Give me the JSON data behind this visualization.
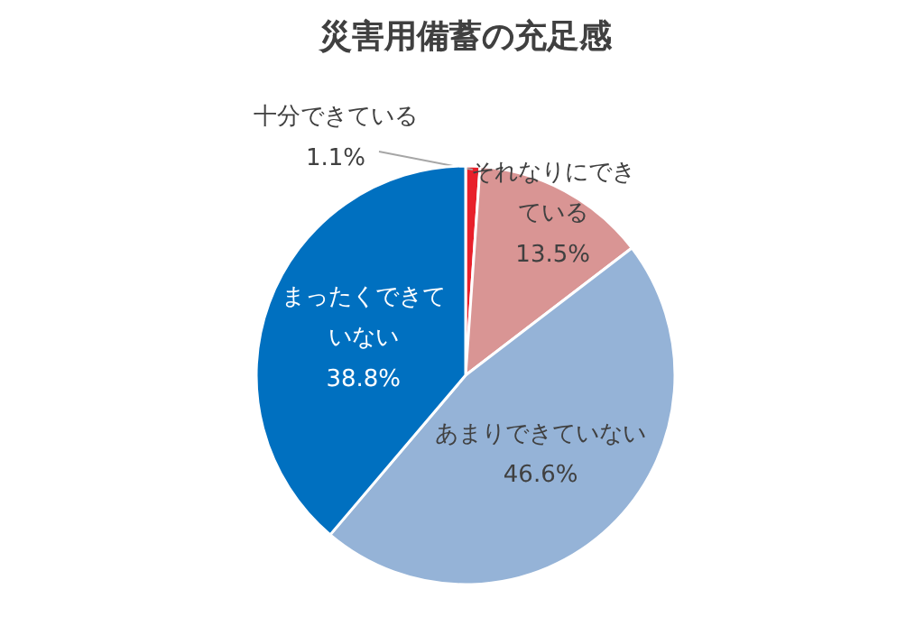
{
  "chart_data": {
    "type": "pie",
    "title": "災害用備蓄の充足感",
    "categories": [
      "十分できている",
      "それなりにできている",
      "あまりできていない",
      "まったくできていない"
    ],
    "values": [
      1.1,
      13.5,
      46.6,
      38.8
    ],
    "value_labels": [
      "1.1%",
      "13.5%",
      "46.6%",
      "38.8%"
    ],
    "colors": [
      "#e8202a",
      "#d99594",
      "#95b3d7",
      "#0070c0"
    ]
  }
}
